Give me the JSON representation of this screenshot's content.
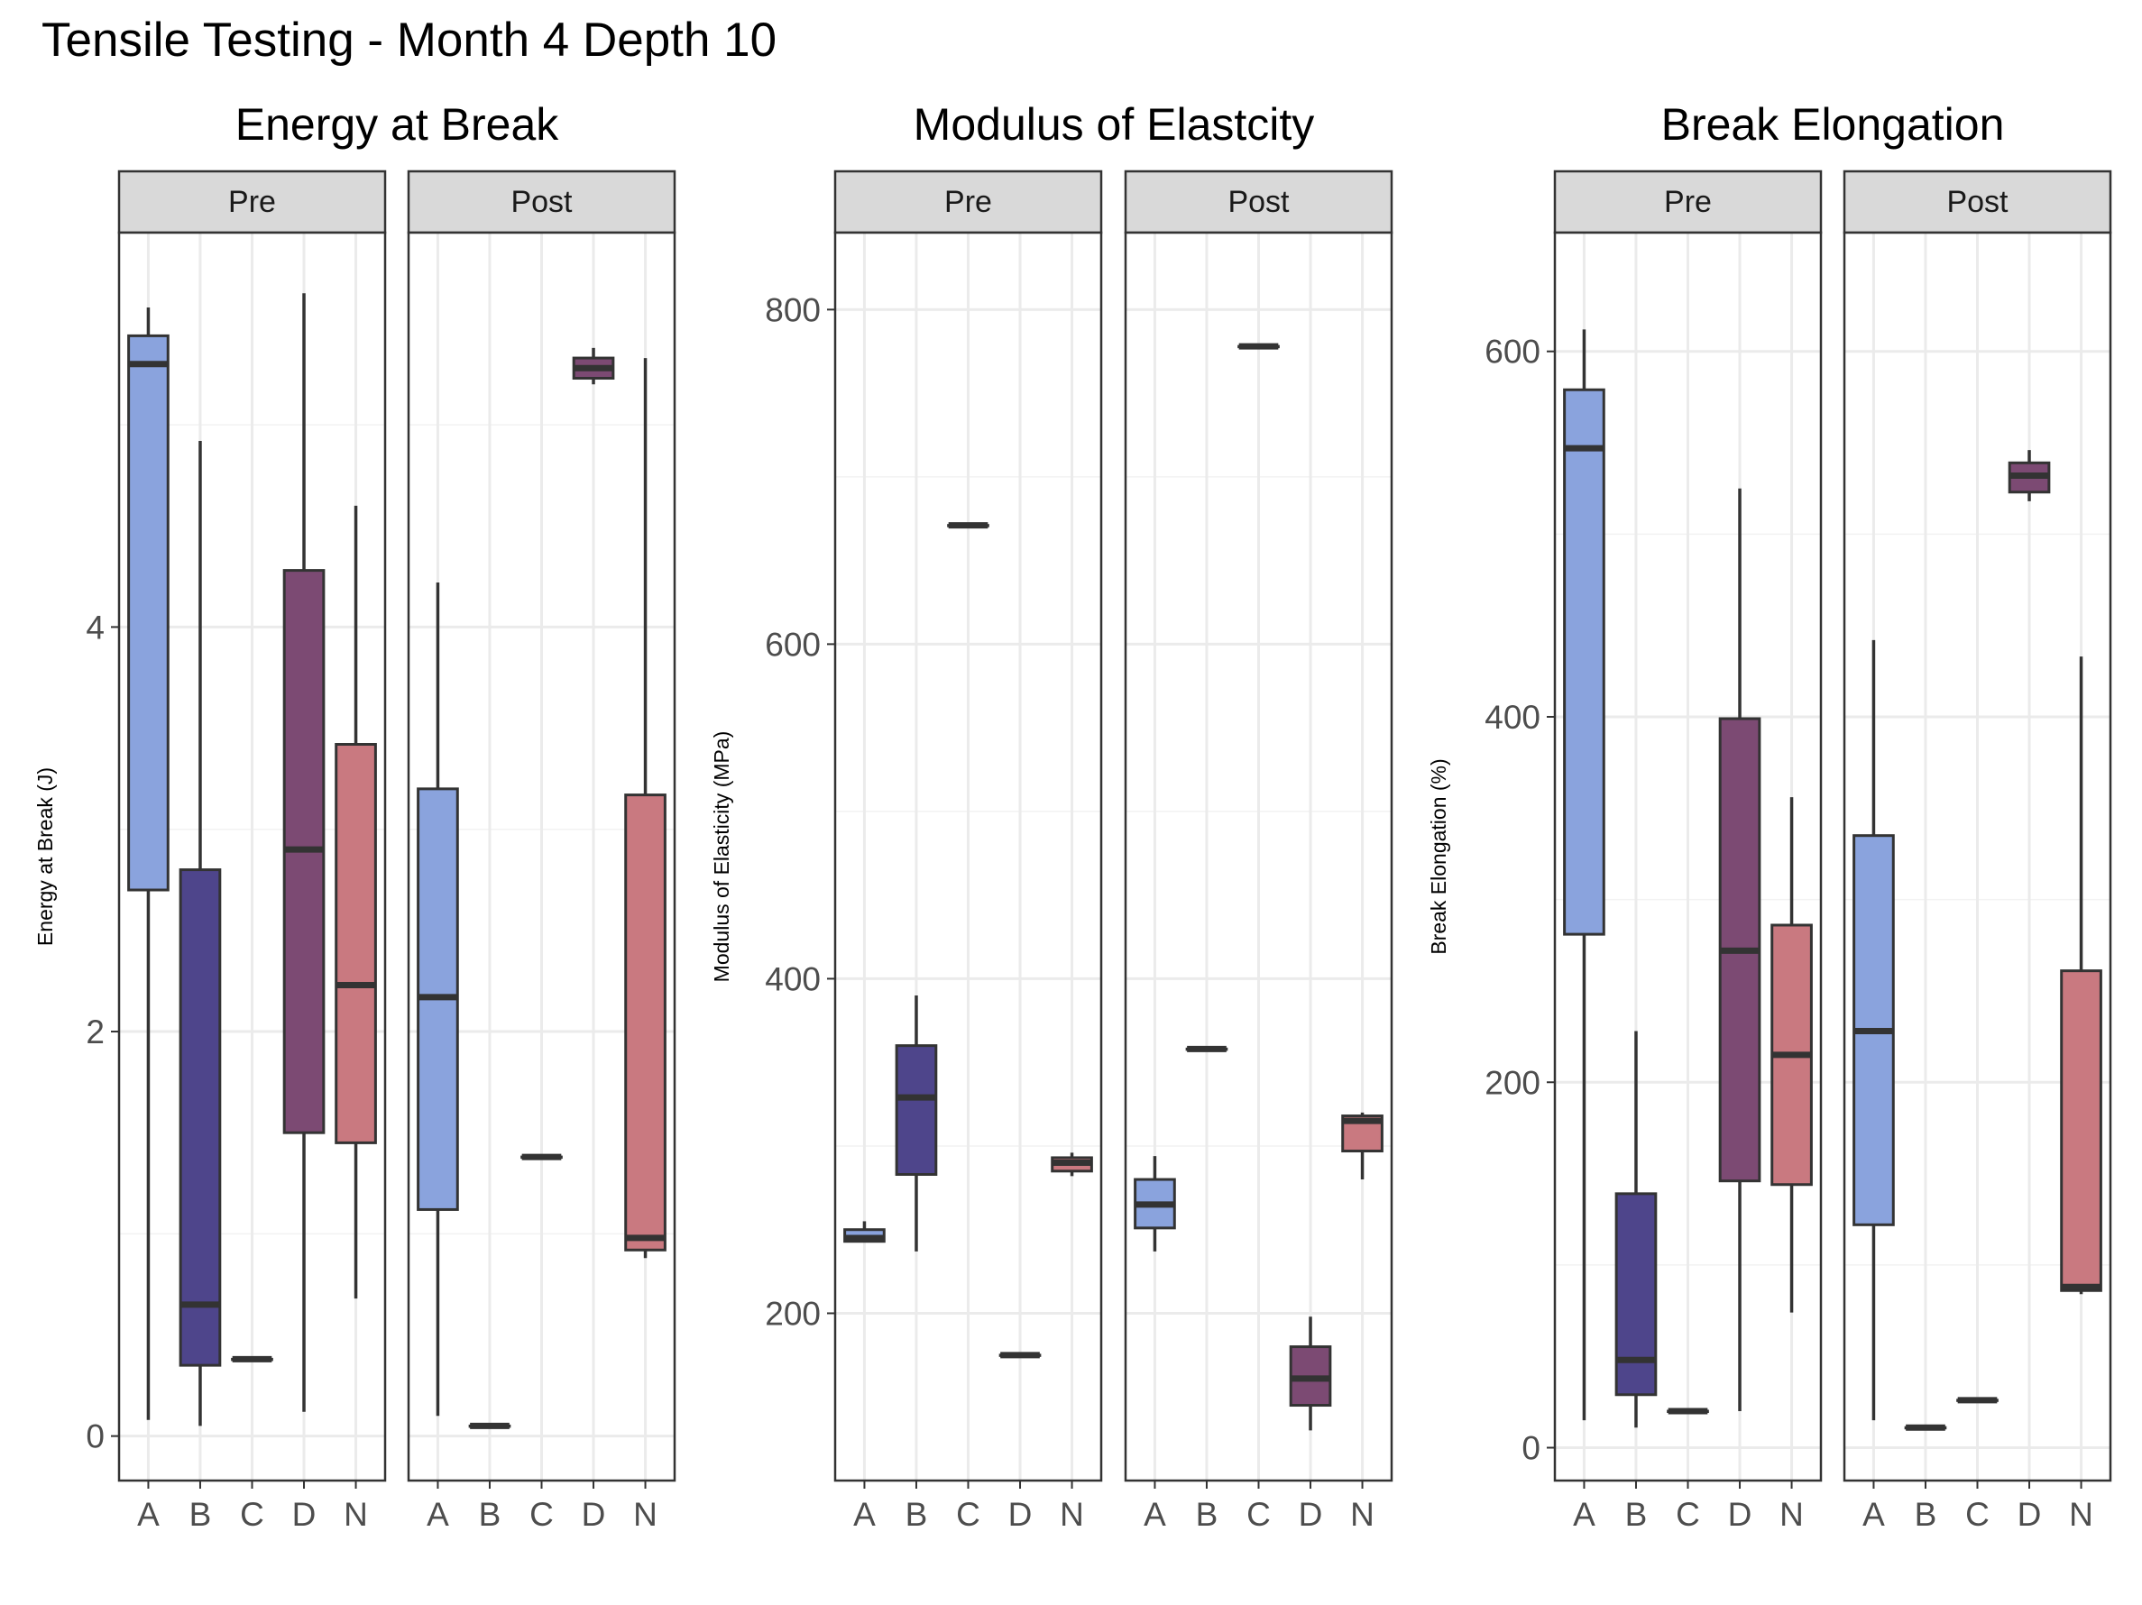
{
  "title": "Tensile Testing - Month 4 Depth 10",
  "colors": {
    "A": "#8aa3dd",
    "B": "#4e458b",
    "C": "#a6c3e8",
    "D": "#7c4a73",
    "N": "#c97980",
    "strip_fill": "#d9d9d9",
    "grid": "#ebebeb",
    "outline": "#333333"
  },
  "chart_data": [
    {
      "type": "box",
      "title": "Energy at Break",
      "ylabel": "Energy at Break (J)",
      "xlabel": "",
      "ylim": [
        -0.22,
        5.95
      ],
      "yticks": [
        0,
        2,
        4
      ],
      "grid": true,
      "categories": [
        "A",
        "B",
        "C",
        "D",
        "N"
      ],
      "facets": [
        {
          "label": "Pre",
          "boxes": [
            {
              "cat": "A",
              "min": 0.08,
              "q1": 2.7,
              "median": 5.3,
              "q3": 5.44,
              "max": 5.58
            },
            {
              "cat": "B",
              "min": 0.05,
              "q1": 0.35,
              "median": 0.65,
              "q3": 2.8,
              "max": 4.92
            },
            {
              "cat": "C",
              "min": 0.38,
              "q1": 0.38,
              "median": 0.38,
              "q3": 0.38,
              "max": 0.38
            },
            {
              "cat": "D",
              "min": 0.12,
              "q1": 1.5,
              "median": 2.9,
              "q3": 4.28,
              "max": 5.65
            },
            {
              "cat": "N",
              "min": 0.68,
              "q1": 1.45,
              "median": 2.23,
              "q3": 3.42,
              "max": 4.6
            }
          ]
        },
        {
          "label": "Post",
          "boxes": [
            {
              "cat": "A",
              "min": 0.1,
              "q1": 1.12,
              "median": 2.17,
              "q3": 3.2,
              "max": 4.22
            },
            {
              "cat": "B",
              "min": 0.05,
              "q1": 0.05,
              "median": 0.05,
              "q3": 0.05,
              "max": 0.05
            },
            {
              "cat": "C",
              "min": 1.38,
              "q1": 1.38,
              "median": 1.38,
              "q3": 1.38,
              "max": 1.38
            },
            {
              "cat": "D",
              "min": 5.2,
              "q1": 5.23,
              "median": 5.28,
              "q3": 5.33,
              "max": 5.38
            },
            {
              "cat": "N",
              "min": 0.88,
              "q1": 0.92,
              "median": 0.98,
              "q3": 3.17,
              "max": 5.33
            }
          ]
        }
      ]
    },
    {
      "type": "box",
      "title": "Modulus of Elastcity",
      "ylabel": "Modulus of Elasticity (MPa)",
      "xlabel": "",
      "ylim": [
        100,
        846
      ],
      "yticks": [
        200,
        400,
        600,
        800
      ],
      "grid": true,
      "categories": [
        "A",
        "B",
        "C",
        "D",
        "N"
      ],
      "facets": [
        {
          "label": "Pre",
          "boxes": [
            {
              "cat": "A",
              "min": 243,
              "q1": 243,
              "median": 245,
              "q3": 250,
              "max": 255
            },
            {
              "cat": "B",
              "min": 237,
              "q1": 283,
              "median": 329,
              "q3": 360,
              "max": 390
            },
            {
              "cat": "C",
              "min": 671,
              "q1": 671,
              "median": 671,
              "q3": 671,
              "max": 671
            },
            {
              "cat": "D",
              "min": 175,
              "q1": 175,
              "median": 175,
              "q3": 175,
              "max": 175
            },
            {
              "cat": "N",
              "min": 282,
              "q1": 285,
              "median": 290,
              "q3": 293,
              "max": 296
            }
          ]
        },
        {
          "label": "Post",
          "boxes": [
            {
              "cat": "A",
              "min": 237,
              "q1": 251,
              "median": 265,
              "q3": 280,
              "max": 294
            },
            {
              "cat": "B",
              "min": 358,
              "q1": 358,
              "median": 358,
              "q3": 358,
              "max": 358
            },
            {
              "cat": "C",
              "min": 778,
              "q1": 778,
              "median": 778,
              "q3": 778,
              "max": 778
            },
            {
              "cat": "D",
              "min": 130,
              "q1": 145,
              "median": 161,
              "q3": 180,
              "max": 198
            },
            {
              "cat": "N",
              "min": 280,
              "q1": 297,
              "median": 315,
              "q3": 318,
              "max": 320
            }
          ]
        }
      ]
    },
    {
      "type": "box",
      "title": "Break Elongation",
      "ylabel": "Break Elongation (%)",
      "xlabel": "",
      "ylim": [
        -18,
        665
      ],
      "yticks": [
        0,
        200,
        400,
        600
      ],
      "grid": true,
      "categories": [
        "A",
        "B",
        "C",
        "D",
        "N"
      ],
      "facets": [
        {
          "label": "Pre",
          "boxes": [
            {
              "cat": "A",
              "min": 15,
              "q1": 281,
              "median": 547,
              "q3": 579,
              "max": 612
            },
            {
              "cat": "B",
              "min": 11,
              "q1": 29,
              "median": 48,
              "q3": 139,
              "max": 228
            },
            {
              "cat": "C",
              "min": 20,
              "q1": 20,
              "median": 20,
              "q3": 20,
              "max": 20
            },
            {
              "cat": "D",
              "min": 20,
              "q1": 146,
              "median": 272,
              "q3": 399,
              "max": 525
            },
            {
              "cat": "N",
              "min": 74,
              "q1": 144,
              "median": 215,
              "q3": 286,
              "max": 356
            }
          ]
        },
        {
          "label": "Post",
          "boxes": [
            {
              "cat": "A",
              "min": 15,
              "q1": 122,
              "median": 228,
              "q3": 335,
              "max": 442
            },
            {
              "cat": "B",
              "min": 11,
              "q1": 11,
              "median": 11,
              "q3": 11,
              "max": 11
            },
            {
              "cat": "C",
              "min": 26,
              "q1": 26,
              "median": 26,
              "q3": 26,
              "max": 26
            },
            {
              "cat": "D",
              "min": 518,
              "q1": 523,
              "median": 532,
              "q3": 539,
              "max": 546
            },
            {
              "cat": "N",
              "min": 84,
              "q1": 86,
              "median": 88,
              "q3": 261,
              "max": 433
            }
          ]
        }
      ]
    }
  ]
}
